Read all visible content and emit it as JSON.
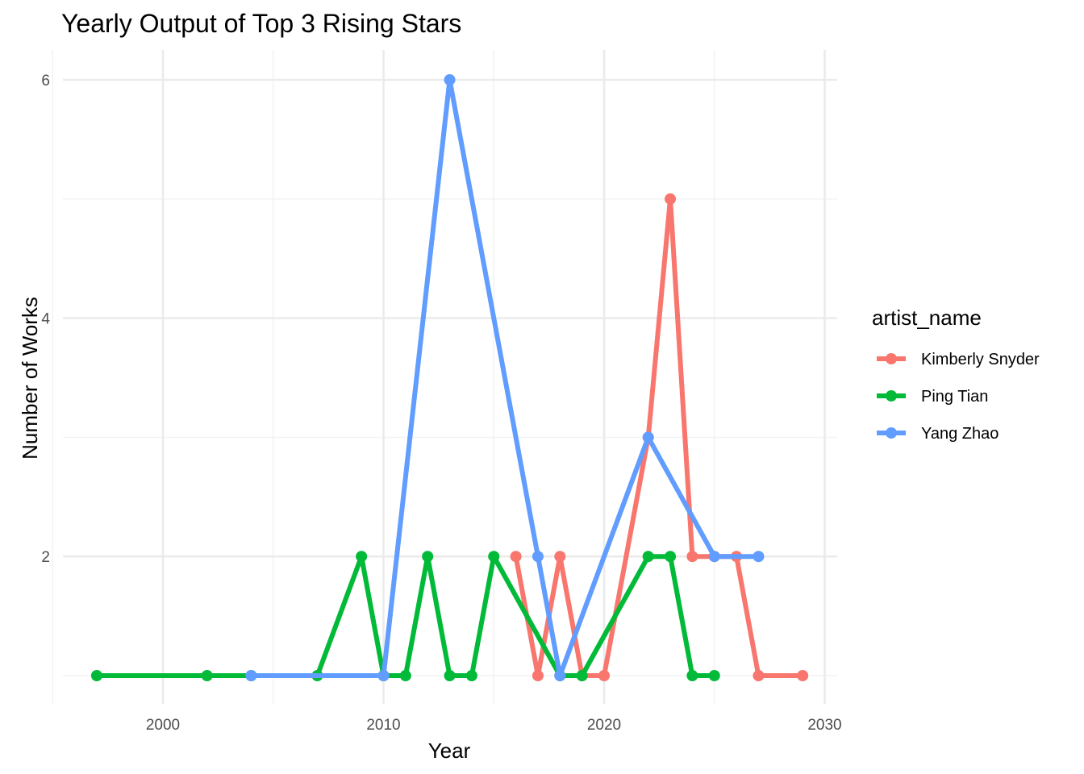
{
  "chart_data": {
    "type": "line",
    "title": "Yearly Output of Top 3 Rising Stars",
    "xlabel": "Year",
    "ylabel": "Number of Works",
    "xlim": [
      1996,
      2030
    ],
    "ylim": [
      0.8,
      6.2
    ],
    "xticks": [
      2000,
      2010,
      2020,
      2030
    ],
    "yticks": [
      2,
      4,
      6
    ],
    "grid": true,
    "legend": {
      "title": "artist_name",
      "position": "right"
    },
    "series": [
      {
        "name": "Kimberly Snyder",
        "color": "#F8766D",
        "x": [
          2016,
          2017,
          2018,
          2019,
          2020,
          2022,
          2023,
          2024,
          2025,
          2026,
          2027,
          2029
        ],
        "values": [
          2,
          1,
          2,
          1,
          1,
          3,
          5,
          2,
          2,
          2,
          1,
          1
        ]
      },
      {
        "name": "Ping Tian",
        "color": "#00BA38",
        "x": [
          1997,
          2002,
          2004,
          2007,
          2009,
          2010,
          2011,
          2012,
          2013,
          2014,
          2015,
          2018,
          2019,
          2022,
          2023,
          2024,
          2025
        ],
        "values": [
          1,
          1,
          1,
          1,
          2,
          1,
          1,
          2,
          1,
          1,
          2,
          1,
          1,
          2,
          2,
          1,
          1
        ]
      },
      {
        "name": "Yang Zhao",
        "color": "#619CFF",
        "x": [
          2004,
          2010,
          2013,
          2017,
          2018,
          2022,
          2025,
          2027
        ],
        "values": [
          1,
          1,
          6,
          2,
          1,
          3,
          2,
          2
        ]
      }
    ]
  }
}
